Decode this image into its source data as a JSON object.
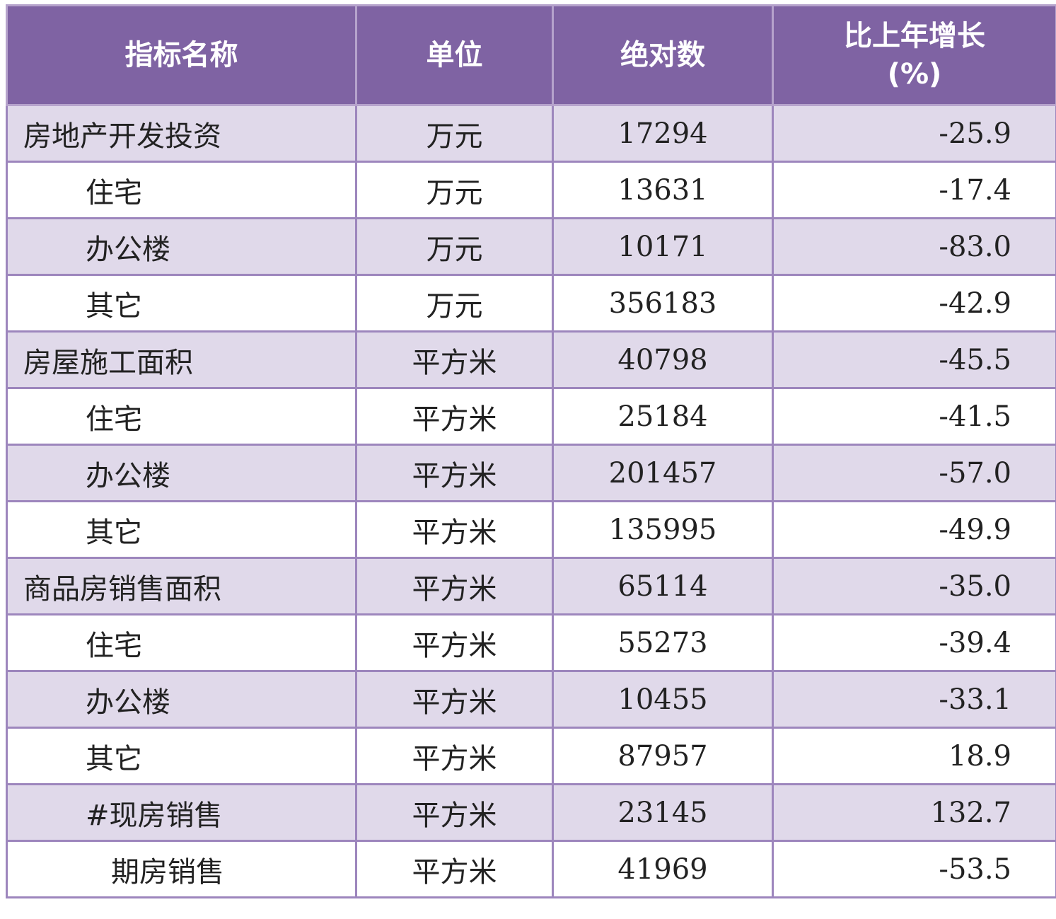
{
  "headers": {
    "name": "指标名称",
    "unit": "单位",
    "value": "绝对数",
    "growth_line1": "比上年增长",
    "growth_line2": "(%)"
  },
  "rows": [
    {
      "name": "房地产开发投资",
      "unit": "万元",
      "value": "17294",
      "growth": "-25.9",
      "level": 0
    },
    {
      "name": "住宅",
      "unit": "万元",
      "value": "13631",
      "growth": "-17.4",
      "level": 1
    },
    {
      "name": "办公楼",
      "unit": "万元",
      "value": "10171",
      "growth": "-83.0",
      "level": 1
    },
    {
      "name": "其它",
      "unit": "万元",
      "value": "356183",
      "growth": "-42.9",
      "level": 1
    },
    {
      "name": "房屋施工面积",
      "unit": "平方米",
      "value": "40798",
      "growth": "-45.5",
      "level": 0
    },
    {
      "name": "住宅",
      "unit": "平方米",
      "value": "25184",
      "growth": "-41.5",
      "level": 1
    },
    {
      "name": "办公楼",
      "unit": "平方米",
      "value": "201457",
      "growth": "-57.0",
      "level": 1
    },
    {
      "name": "其它",
      "unit": "平方米",
      "value": "135995",
      "growth": "-49.9",
      "level": 1
    },
    {
      "name": "商品房销售面积",
      "unit": "平方米",
      "value": "65114",
      "growth": "-35.0",
      "level": 0
    },
    {
      "name": "住宅",
      "unit": "平方米",
      "value": "55273",
      "growth": "-39.4",
      "level": 1
    },
    {
      "name": "办公楼",
      "unit": "平方米",
      "value": "10455",
      "growth": "-33.1",
      "level": 1
    },
    {
      "name": "其它",
      "unit": "平方米",
      "value": "87957",
      "growth": "18.9",
      "level": 1
    },
    {
      "name": "#现房销售",
      "unit": "平方米",
      "value": "23145",
      "growth": "132.7",
      "level": 1
    },
    {
      "name": "期房销售",
      "unit": "平方米",
      "value": "41969",
      "growth": "-53.5",
      "level": 2
    }
  ]
}
